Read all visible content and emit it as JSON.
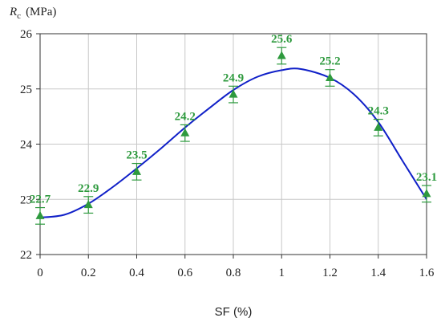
{
  "chart_data": {
    "type": "scatter",
    "xlabel": "SF (%)",
    "ylabel_symbol": "R",
    "ylabel_subscript": "c",
    "ylabel_unit": "(MPa)",
    "xlim": [
      0,
      1.6
    ],
    "ylim": [
      22,
      26
    ],
    "x_ticks": [
      "0",
      "0.2",
      "0.4",
      "0.6",
      "0.8",
      "1",
      "1.2",
      "1.4",
      "1.6"
    ],
    "y_ticks": [
      "22",
      "23",
      "24",
      "25",
      "26"
    ],
    "grid": true,
    "series": [
      {
        "marker": "triangle",
        "color": "#2e9a3e",
        "x": [
          0,
          0.2,
          0.4,
          0.6,
          0.8,
          1.0,
          1.2,
          1.4,
          1.6
        ],
        "y": [
          22.7,
          22.9,
          23.5,
          24.2,
          24.9,
          25.6,
          25.2,
          24.3,
          23.1
        ],
        "labels": [
          "22.7",
          "22.9",
          "23.5",
          "24.2",
          "24.9",
          "25.6",
          "25.2",
          "24.3",
          "23.1"
        ],
        "error": [
          0.15,
          0.15,
          0.15,
          0.15,
          0.15,
          0.15,
          0.15,
          0.15,
          0.15
        ]
      }
    ],
    "fit_curve": {
      "color": "#1020c8",
      "x": [
        0,
        0.1,
        0.2,
        0.3,
        0.4,
        0.5,
        0.6,
        0.7,
        0.8,
        0.9,
        1.0,
        1.08,
        1.2,
        1.3,
        1.4,
        1.5,
        1.6
      ],
      "y": [
        22.67,
        22.72,
        22.92,
        23.22,
        23.56,
        23.92,
        24.3,
        24.65,
        24.98,
        25.22,
        25.34,
        25.36,
        25.2,
        24.9,
        24.4,
        23.7,
        23.0
      ]
    }
  }
}
